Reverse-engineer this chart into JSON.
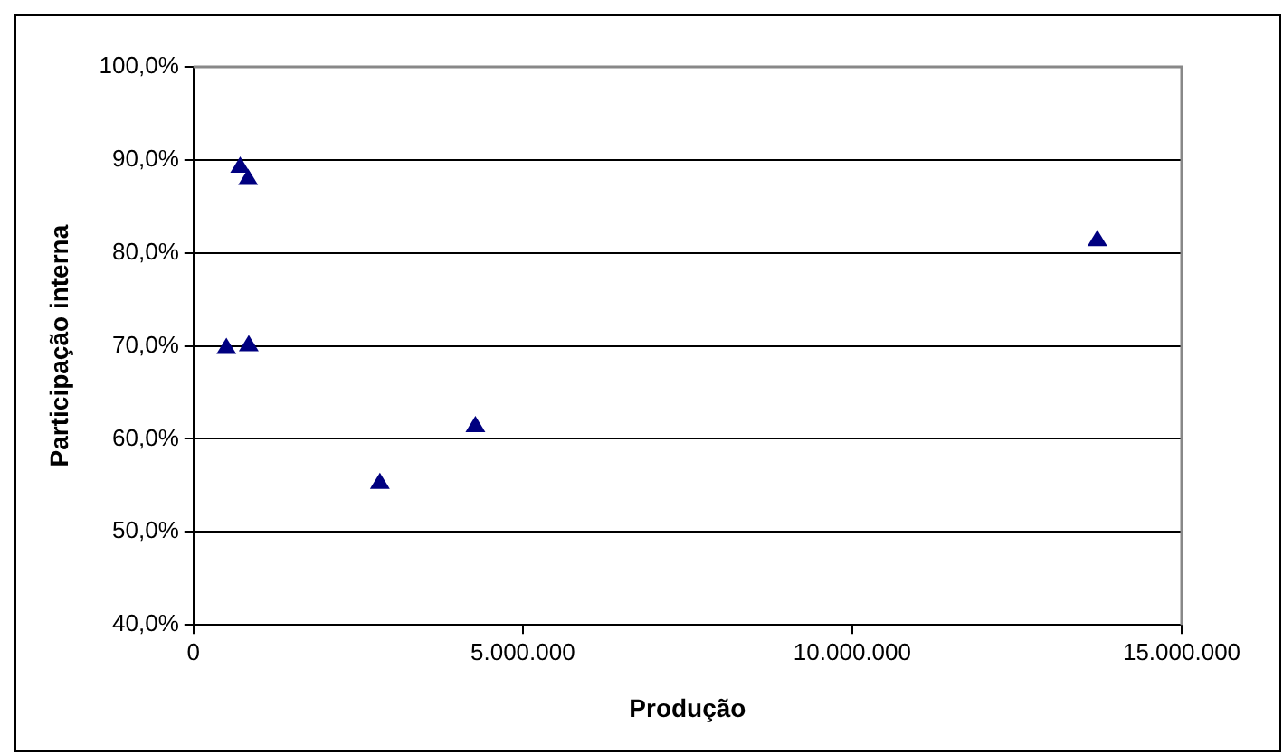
{
  "chart_data": {
    "type": "scatter",
    "xlabel": "Produção",
    "ylabel": "Participação interna",
    "x": [
      710000,
      830000,
      500000,
      840000,
      2830000,
      4280000,
      13720000
    ],
    "series": [
      {
        "color": "#000080",
        "values": [
          89.5,
          88.2,
          70.0,
          70.3,
          55.5,
          61.6,
          81.6
        ]
      }
    ],
    "xlim": [
      0,
      15000000
    ],
    "xticks": [
      {
        "value": 0,
        "label": "0"
      },
      {
        "value": 5000000,
        "label": "5.000.000"
      },
      {
        "value": 10000000,
        "label": "10.000.000"
      },
      {
        "value": 15000000,
        "label": "15.000.000"
      }
    ],
    "ylim": [
      40,
      100
    ],
    "yticks": [
      {
        "value": 40,
        "label": "40,0%"
      },
      {
        "value": 50,
        "label": "50,0%"
      },
      {
        "value": 60,
        "label": "60,0%"
      },
      {
        "value": 70,
        "label": "70,0%"
      },
      {
        "value": 80,
        "label": "80,0%"
      },
      {
        "value": 90,
        "label": "90,0%"
      },
      {
        "value": 100,
        "label": "100,0%"
      }
    ],
    "grid": "y",
    "legend": false,
    "marker": "triangle"
  }
}
